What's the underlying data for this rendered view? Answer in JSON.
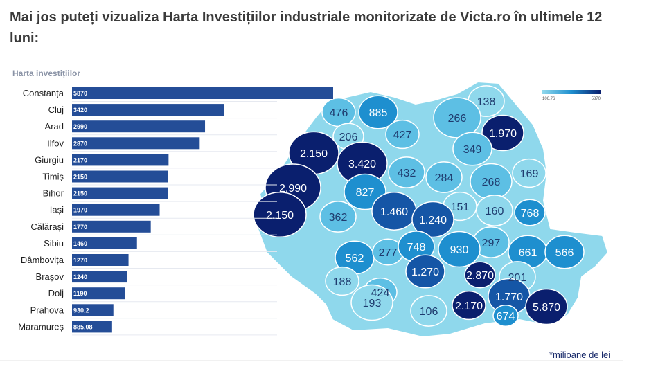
{
  "headline": "Mai jos puteți vizualiza Harta Investițiilor industriale monitorizate de Victa.ro în ultimele 12 luni:",
  "footnote": "*milioane de lei",
  "colors": {
    "bar": "#244d97",
    "bar_label": "#ffffff",
    "category_text": "#1f1f1f",
    "title_text": "#8a93a6",
    "map_light": "#8fd8ec",
    "map_mid": "#1e8fcf",
    "map_dark": "#0a1f6e",
    "map_text_dark": "#ffffff",
    "map_text_light": "#1f3b6e"
  },
  "chart_data": [
    {
      "type": "bar",
      "orientation": "horizontal",
      "title": "Harta investițiilor",
      "categories": [
        "Constanța",
        "Cluj",
        "Arad",
        "Ilfov",
        "Giurgiu",
        "Timiș",
        "Bihor",
        "Iași",
        "Călărași",
        "Sibiu",
        "Dâmbovița",
        "Brașov",
        "Dolj",
        "Prahova",
        "Maramureș"
      ],
      "values": [
        5870,
        3420,
        2990,
        2870,
        2170,
        2150,
        2150,
        1970,
        1770,
        1460,
        1270,
        1240,
        1190,
        930.2,
        885.08
      ],
      "value_labels": [
        "5870",
        "3420",
        "2990",
        "2870",
        "2170",
        "2150",
        "2150",
        "1970",
        "1770",
        "1460",
        "1270",
        "1240",
        "1190",
        "930.2",
        "885.08"
      ],
      "xlim": [
        0,
        5870
      ],
      "grid": true
    },
    {
      "type": "choropleth-map",
      "legend": {
        "min": "106.76",
        "max": "5870",
        "placement": "top-right"
      },
      "regions": [
        {
          "label": "476",
          "value": 476
        },
        {
          "label": "885",
          "value": 885
        },
        {
          "label": "138",
          "value": 138
        },
        {
          "label": "266",
          "value": 266
        },
        {
          "label": "1.970",
          "value": 1970
        },
        {
          "label": "206",
          "value": 206
        },
        {
          "label": "427",
          "value": 427
        },
        {
          "label": "2.150",
          "value": 2150
        },
        {
          "label": "3.420",
          "value": 3420
        },
        {
          "label": "349",
          "value": 349
        },
        {
          "label": "432",
          "value": 432
        },
        {
          "label": "284",
          "value": 284
        },
        {
          "label": "268",
          "value": 268
        },
        {
          "label": "169",
          "value": 169
        },
        {
          "label": "2.990",
          "value": 2990
        },
        {
          "label": "827",
          "value": 827
        },
        {
          "label": "151",
          "value": 151
        },
        {
          "label": "160",
          "value": 160
        },
        {
          "label": "768",
          "value": 768
        },
        {
          "label": "2.150",
          "value": 2150
        },
        {
          "label": "362",
          "value": 362
        },
        {
          "label": "1.460",
          "value": 1460
        },
        {
          "label": "1.240",
          "value": 1240
        },
        {
          "label": "297",
          "value": 297
        },
        {
          "label": "562",
          "value": 562
        },
        {
          "label": "277",
          "value": 277
        },
        {
          "label": "748",
          "value": 748
        },
        {
          "label": "930",
          "value": 930
        },
        {
          "label": "661",
          "value": 661
        },
        {
          "label": "566",
          "value": 566
        },
        {
          "label": "188",
          "value": 188
        },
        {
          "label": "424",
          "value": 424
        },
        {
          "label": "1.270",
          "value": 1270
        },
        {
          "label": "2.870",
          "value": 2870
        },
        {
          "label": "201",
          "value": 201
        },
        {
          "label": "193",
          "value": 193
        },
        {
          "label": "106",
          "value": 106
        },
        {
          "label": "2.170",
          "value": 2170
        },
        {
          "label": "1.770",
          "value": 1770
        },
        {
          "label": "674",
          "value": 674
        },
        {
          "label": "5.870",
          "value": 5870
        }
      ]
    }
  ]
}
